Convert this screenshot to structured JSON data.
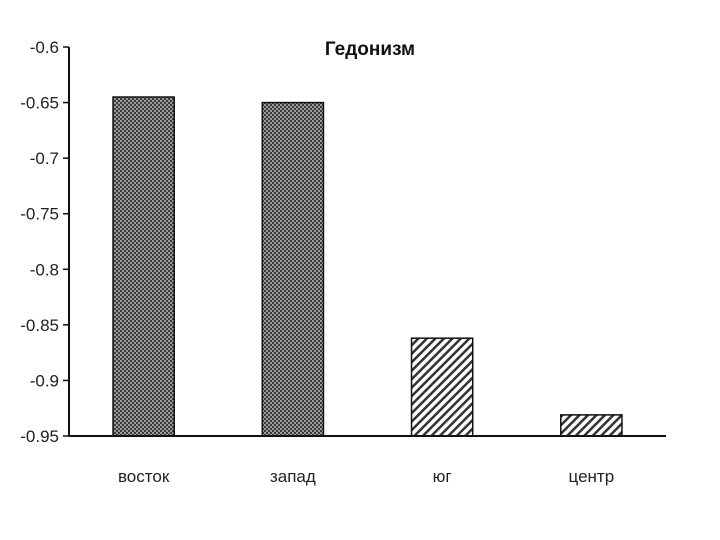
{
  "chart_data": {
    "type": "bar",
    "title": "Гедонизм",
    "xlabel": "",
    "ylabel": "",
    "categories": [
      "восток",
      "запад",
      "юг",
      "центр"
    ],
    "values": [
      -0.645,
      -0.65,
      -0.862,
      -0.931
    ],
    "ylim": [
      -0.95,
      -0.6
    ],
    "yticks": [
      "-0.6",
      "-0.65",
      "-0.7",
      "-0.75",
      "-0.8",
      "-0.85",
      "-0.9",
      "-0.95"
    ],
    "bar_fills": [
      "crosshatch-dark",
      "crosshatch-dark",
      "diagonal-hatch",
      "diagonal-hatch"
    ],
    "grid": false,
    "legend": "none"
  }
}
